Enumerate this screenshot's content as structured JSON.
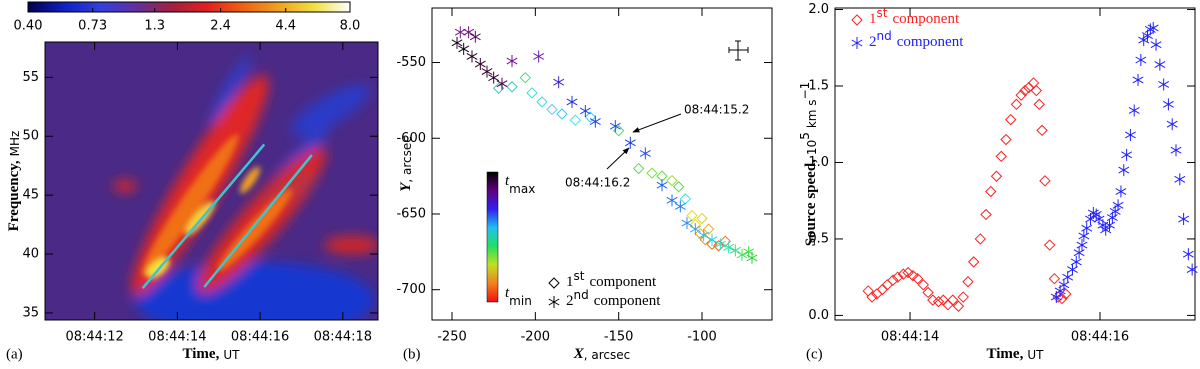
{
  "chart_data": [
    {
      "type": "heatmap",
      "panel_label": "(a)",
      "x_label": [
        "Time,",
        "UT"
      ],
      "y_label": [
        "Frequency,",
        "MHz"
      ],
      "xlim": [
        10.8,
        18.85
      ],
      "xticks": [
        {
          "value": 12,
          "label": "08:44:12"
        },
        {
          "value": 14,
          "label": "08:44:14"
        },
        {
          "value": 16,
          "label": "08:44:16"
        },
        {
          "value": 18,
          "label": "08:44:18"
        }
      ],
      "ylim": [
        34.4,
        58
      ],
      "yticks": [
        35,
        40,
        45,
        50,
        55
      ],
      "colorbar": {
        "lim": [
          0.4,
          8.0
        ],
        "log": true,
        "ticks": [
          {
            "value": 0.4,
            "label": "0.40"
          },
          0.73,
          1.3,
          2.4,
          4.4,
          {
            "value": 8.0,
            "label": "8.0"
          }
        ],
        "colors": [
          "#000050",
          "#1020c0",
          "#3040e0",
          "#6030a0",
          "#a02040",
          "#e02020",
          "#f06010",
          "#f0a020",
          "#f0e040",
          "#ffffff"
        ]
      },
      "series": [
        {
          "color": "#40c4cc",
          "x": [
            13.16,
            16.1
          ],
          "values": [
            37.1,
            49.3
          ]
        },
        {
          "color": "#40c4cc",
          "x": [
            14.65,
            17.25
          ],
          "values": [
            37.2,
            48.4
          ]
        }
      ]
    },
    {
      "type": "scatter",
      "panel_label": "(b)",
      "x_label": [
        "X",
        ", arcsec"
      ],
      "y_label": [
        "Y",
        ", arcsec"
      ],
      "xlim": [
        -262,
        -58
      ],
      "xticks": [
        -250,
        -200,
        -150,
        -100
      ],
      "ylim": [
        -720,
        -514
      ],
      "yticks": [
        -550,
        -600,
        -650,
        -700
      ],
      "legend": "lower right",
      "colorbar": {
        "top": {
          "symbol": "t",
          "sub": "max"
        },
        "bottom": {
          "symbol": "t",
          "sub": "min"
        },
        "colors": [
          "#000000",
          "#600080",
          "#3020f0",
          "#20c0f0",
          "#20e060",
          "#c0e020",
          "#f08020",
          "#f01010"
        ]
      },
      "annotations": [
        {
          "text": "08:44:15.2"
        },
        {
          "text": "08:44:16.2"
        }
      ],
      "series": [
        {
          "name": [
            "1",
            "st",
            "component"
          ],
          "marker": "diamond",
          "color": "#000000",
          "x": [
            -222,
            -214,
            -206,
            -202,
            -196,
            -190,
            -184,
            -176,
            -167,
            -150,
            -138,
            -130,
            -124,
            -118,
            -114,
            -110,
            -106,
            -104,
            -101,
            -98,
            -94,
            -90,
            -86,
            -100,
            -96
          ],
          "values": [
            -567,
            -566,
            -560,
            -570,
            -576,
            -581,
            -584,
            -588,
            -586,
            -595,
            -620,
            -623,
            -625,
            -628,
            -632,
            -640,
            -651,
            -657,
            -663,
            -667,
            -670,
            -671,
            -668,
            -653,
            -660
          ],
          "colors": [
            "#40c8d0",
            "#30d0c0",
            "#40e080",
            "#30e0e0",
            "#40d8f0",
            "#60c8f0",
            "#30d0f0",
            "#40e0f0",
            "#30c8f0",
            "#40e060",
            "#50e050",
            "#80e040",
            "#60e040",
            "#a0e030",
            "#50e050",
            "#40e0e0",
            "#e0e020",
            "#f0d020",
            "#f0a020",
            "#f09020",
            "#f07020",
            "#f06020",
            "#f08020",
            "#e0d030",
            "#f0b020"
          ]
        },
        {
          "name": [
            "2",
            "nd",
            "component"
          ],
          "marker": "asterisk",
          "color": "#000000",
          "x": [
            -245,
            -240,
            -236,
            -247,
            -243,
            -238,
            -233,
            -229,
            -225,
            -220,
            -214,
            -198,
            -186,
            -178,
            -170,
            -164,
            -152,
            -143,
            -134,
            -124,
            -118,
            -113,
            -109,
            -104,
            -99,
            -94,
            -89,
            -84,
            -80,
            -76,
            -72,
            -70
          ],
          "values": [
            -530,
            -530,
            -533,
            -537,
            -541,
            -546,
            -551,
            -556,
            -560,
            -564,
            -549,
            -546,
            -563,
            -576,
            -582,
            -589,
            -592,
            -603,
            -610,
            -631,
            -641,
            -645,
            -656,
            -660,
            -664,
            -667,
            -670,
            -672,
            -674,
            -677,
            -675,
            -679
          ],
          "colors": [
            "#7a1a8a",
            "#6a107a",
            "#5a0a6a",
            "#200020",
            "#100010",
            "#200020",
            "#300030",
            "#300030",
            "#300038",
            "#400050",
            "#6a1090",
            "#7020b0",
            "#4020d0",
            "#2030e0",
            "#2040e8",
            "#2040f0",
            "#2050f0",
            "#2040e8",
            "#2050f0",
            "#2060f0",
            "#2070f0",
            "#2080f0",
            "#3090f0",
            "#30a0f0",
            "#30c0f0",
            "#30d0e0",
            "#30e0d0",
            "#30e0b0",
            "#30e080",
            "#40e060",
            "#40e040",
            "#30d030"
          ]
        }
      ]
    },
    {
      "type": "scatter",
      "panel_label": "(c)",
      "x_label": [
        "Time,",
        "UT"
      ],
      "y_label": [
        "Source speed,",
        "10",
        "5",
        "km s",
        "−1"
      ],
      "xlim": [
        13.21,
        17.0
      ],
      "xticks": [
        {
          "value": 14,
          "label": "08:44:14"
        },
        {
          "value": 16,
          "label": "08:44:16"
        }
      ],
      "ylim": [
        -0.03,
        2.01
      ],
      "yticks": [
        {
          "value": 0,
          "label": "0.0"
        },
        0.5,
        {
          "value": 1,
          "label": "1.0"
        },
        1.5,
        {
          "value": 2,
          "label": "2.0"
        }
      ],
      "legend": "upper left",
      "series": [
        {
          "name": [
            "1",
            "st",
            "component"
          ],
          "marker": "diamond",
          "color": "#ff2020",
          "x": [
            13.56,
            13.6,
            13.65,
            13.71,
            13.76,
            13.82,
            13.87,
            13.93,
            13.98,
            14.03,
            14.08,
            14.14,
            14.19,
            14.24,
            14.3,
            14.35,
            14.4,
            14.45,
            14.51,
            14.56,
            14.61,
            14.67,
            14.74,
            14.8,
            14.85,
            14.91,
            14.96,
            15.01,
            15.06,
            15.12,
            15.17,
            15.21,
            15.25,
            15.3,
            15.33,
            15.36,
            15.39,
            15.42,
            15.47,
            15.52,
            15.56,
            15.6,
            15.64
          ],
          "values": [
            0.16,
            0.12,
            0.14,
            0.17,
            0.2,
            0.23,
            0.25,
            0.27,
            0.28,
            0.26,
            0.24,
            0.2,
            0.15,
            0.1,
            0.09,
            0.1,
            0.07,
            0.1,
            0.06,
            0.12,
            0.22,
            0.35,
            0.5,
            0.66,
            0.81,
            0.91,
            1.04,
            1.15,
            1.28,
            1.38,
            1.44,
            1.47,
            1.49,
            1.52,
            1.47,
            1.38,
            1.21,
            0.88,
            0.46,
            0.24,
            0.12,
            0.11,
            0.14
          ]
        },
        {
          "name": [
            "2",
            "nd",
            "component"
          ],
          "marker": "asterisk",
          "color": "#2020ff",
          "x": [
            15.54,
            15.58,
            15.62,
            15.66,
            15.71,
            15.75,
            15.78,
            15.81,
            15.83,
            15.86,
            15.9,
            15.93,
            15.96,
            15.99,
            16.03,
            16.06,
            16.1,
            16.13,
            16.16,
            16.19,
            16.22,
            16.25,
            16.28,
            16.32,
            16.36,
            16.4,
            16.43,
            16.46,
            16.5,
            16.53,
            16.56,
            16.59,
            16.63,
            16.67,
            16.72,
            16.76,
            16.8,
            16.84,
            16.88,
            16.93,
            16.97
          ],
          "values": [
            0.12,
            0.16,
            0.2,
            0.25,
            0.3,
            0.35,
            0.41,
            0.46,
            0.52,
            0.57,
            0.63,
            0.67,
            0.66,
            0.63,
            0.59,
            0.56,
            0.59,
            0.64,
            0.68,
            0.72,
            0.81,
            0.95,
            1.05,
            1.18,
            1.34,
            1.54,
            1.67,
            1.8,
            1.83,
            1.87,
            1.88,
            1.77,
            1.64,
            1.51,
            1.38,
            1.25,
            1.08,
            0.89,
            0.63,
            0.4,
            0.3
          ]
        }
      ]
    }
  ]
}
